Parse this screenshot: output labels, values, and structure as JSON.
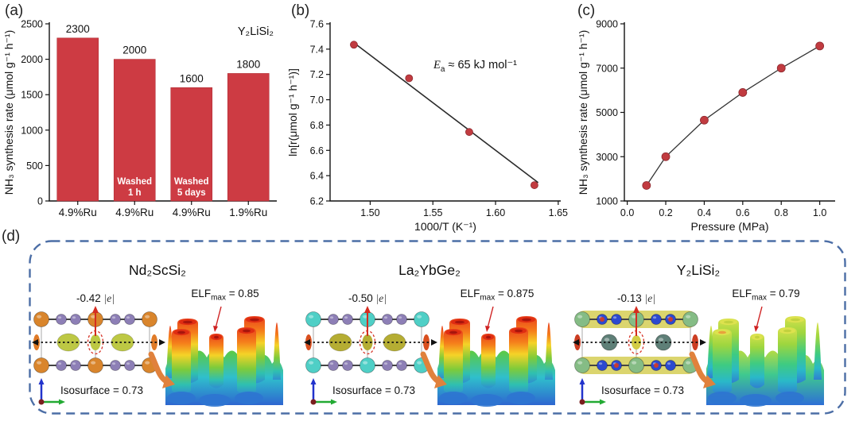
{
  "accent_colors": {
    "bar_red": "#cd3b43",
    "marker_red": "#c13b40",
    "fit_line": "#2a2a2a",
    "dashed_box_blue": "#4c6ea6",
    "annotation_arrow_red": "#d42d20",
    "swoosh_orange": "#e0813c"
  },
  "panels": {
    "a": {
      "label": "(a)"
    },
    "b": {
      "label": "(b)"
    },
    "c": {
      "label": "(c)"
    },
    "d": {
      "label": "(d)",
      "materials": [
        {
          "title": "Nd₂ScSi₂",
          "charge": {
            "value": "-0.42",
            "unit": "|e|"
          },
          "elf": {
            "name": "ELF",
            "sub": "max",
            "value": "= 0.85"
          },
          "isosurface": "Isosurface = 0.73",
          "colors": {
            "atom_big": "#d9852c",
            "atom_small": "#8d7fb6",
            "blob": "#bdc844",
            "edge_blob": "#e07b28",
            "hot": true,
            "band": false,
            "mid_spheres": false
          }
        },
        {
          "title": "La₂YbGe₂",
          "charge": {
            "value": "-0.50",
            "unit": "|e|"
          },
          "elf": {
            "name": "ELF",
            "sub": "max",
            "value": "= 0.875"
          },
          "isosurface": "Isosurface = 0.73",
          "colors": {
            "atom_big": "#4fcfc6",
            "atom_small": "#8d7fb6",
            "blob": "#b5ad33",
            "edge_blob": "#d94f1f",
            "hot": true,
            "band": false,
            "mid_spheres": false
          }
        },
        {
          "title": "Y₂LiSi₂",
          "charge": {
            "value": "-0.13",
            "unit": "|e|"
          },
          "elf": {
            "name": "ELF",
            "sub": "max",
            "value": "= 0.79"
          },
          "isosurface": "Isosurface = 0.73",
          "colors": {
            "atom_big": "#85bc85",
            "atom_small": "#2c49cf",
            "blob": "#d3cc45",
            "edge_blob": "#cc3d22",
            "hot": false,
            "band": true,
            "mid_spheres": true
          }
        }
      ]
    }
  },
  "chart_data": [
    {
      "type": "bar",
      "panel": "a",
      "title": "",
      "categories": [
        "4.9%Ru",
        "4.9%Ru",
        "4.9%Ru",
        "1.9%Ru"
      ],
      "values": [
        2300,
        2000,
        1600,
        1800
      ],
      "bar_labels": [
        "2300",
        "2000",
        "1600",
        "1800"
      ],
      "bar_annotations": [
        "",
        "Washed|1 h",
        "Washed|5 days",
        ""
      ],
      "legend": "Y₂LiSi₂",
      "xlabel": "",
      "ylabel": "NH₃ synthesis rate (μmol g⁻¹ h⁻¹)",
      "ylim": [
        0,
        2500
      ],
      "yticks": [
        "0",
        "500",
        "1000",
        "1500",
        "2000",
        "2500"
      ],
      "bar_color": "#cd3b43",
      "grid": false
    },
    {
      "type": "scatter",
      "panel": "b",
      "title": "",
      "x": [
        1.487,
        1.531,
        1.579,
        1.631
      ],
      "y": [
        7.435,
        7.17,
        6.745,
        6.325
      ],
      "fit_line": {
        "x1": 1.486,
        "y1": 7.458,
        "x2": 1.634,
        "y2": 6.345
      },
      "annotation": {
        "symbol": "E",
        "sub": "a",
        "value": "≈ 65 kJ mol⁻¹"
      },
      "xlabel": "1000/T (K⁻¹)",
      "ylabel": "ln[r(μmol g⁻¹ h⁻¹)]",
      "xlim": [
        1.468,
        1.652
      ],
      "ylim": [
        6.2,
        7.6
      ],
      "xticks": [
        "1.50",
        "1.55",
        "1.60",
        "1.65"
      ],
      "yticks": [
        "6.2",
        "6.4",
        "6.6",
        "6.8",
        "7.0",
        "7.2",
        "7.4",
        "7.6"
      ],
      "marker_color": "#c13b40",
      "grid": false
    },
    {
      "type": "line",
      "panel": "c",
      "title": "",
      "x": [
        0.1,
        0.2,
        0.4,
        0.6,
        0.8,
        1.0
      ],
      "y": [
        1700,
        3000,
        4650,
        5900,
        7000,
        8000
      ],
      "xlabel": "Pressure (MPa)",
      "ylabel": "NH₃ synthesis rate (μmol g⁻¹ h⁻¹)",
      "xlim": [
        -0.015,
        1.08
      ],
      "ylim": [
        1000,
        9000
      ],
      "xticks": [
        "0.0",
        "0.2",
        "0.4",
        "0.6",
        "0.8",
        "1.0"
      ],
      "yticks": [
        "1000",
        "3000",
        "5000",
        "7000",
        "9000"
      ],
      "marker_color": "#c13b40",
      "grid": false
    }
  ]
}
